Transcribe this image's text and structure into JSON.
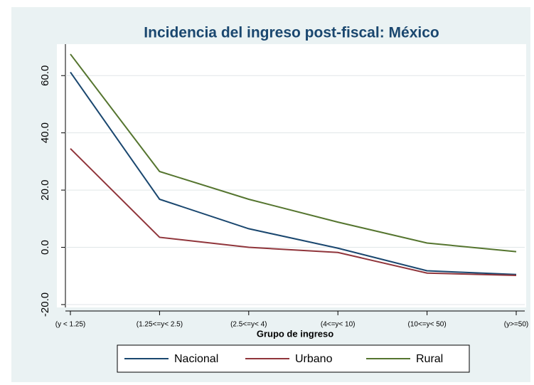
{
  "chart_data": {
    "type": "line",
    "title": "Incidencia del ingreso post-fiscal: México",
    "x_label": "Grupo de ingreso",
    "categories": [
      "(y < 1.25)",
      "(1.25<=y< 2.5)",
      "(2.5<=y< 4)",
      "(4<=y< 10)",
      "(10<=y< 50)",
      "(y>=50)"
    ],
    "series": [
      {
        "name": "Nacional",
        "color": "#1a476f",
        "values": [
          61.2,
          16.8,
          6.5,
          -0.3,
          -8.2,
          -9.5
        ]
      },
      {
        "name": "Urbano",
        "color": "#90353b",
        "values": [
          34.5,
          3.5,
          0,
          -1.8,
          -9.0,
          -9.8
        ]
      },
      {
        "name": "Rural",
        "color": "#55752f",
        "values": [
          67.5,
          26.5,
          16.8,
          8.8,
          1.5,
          -1.5
        ]
      }
    ],
    "ylim": [
      -21,
      71
    ],
    "yticks": [
      {
        "value": -20,
        "label": "-20.0"
      },
      {
        "value": 0,
        "label": "0.0"
      },
      {
        "value": 20,
        "label": "20.0"
      },
      {
        "value": 40,
        "label": "40.0"
      },
      {
        "value": 60,
        "label": "60.0"
      }
    ],
    "grid": true,
    "legend": "bottom"
  }
}
